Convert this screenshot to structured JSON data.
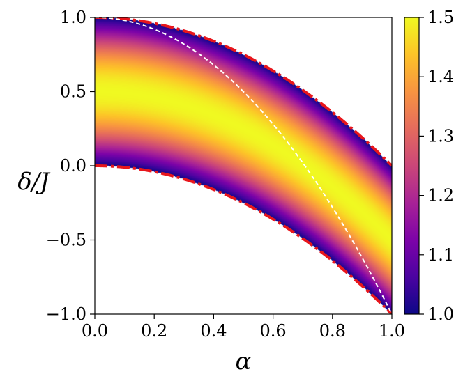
{
  "chart_data": {
    "type": "heatmap",
    "title": "",
    "xlabel": "α",
    "ylabel": "δ/J",
    "xlim": [
      0.0,
      1.0
    ],
    "ylim": [
      -1.0,
      1.0
    ],
    "xticks": [
      "0.0",
      "0.2",
      "0.4",
      "0.6",
      "0.8",
      "1.0"
    ],
    "yticks": [
      "−1.0",
      "−0.5",
      "0.0",
      "0.5",
      "1.0"
    ],
    "xtick_values": [
      0.0,
      0.2,
      0.4,
      0.6,
      0.8,
      1.0
    ],
    "ytick_values": [
      -1.0,
      -0.5,
      0.0,
      0.5,
      1.0
    ],
    "colormap": "plasma",
    "colorbar": {
      "range": [
        1.0,
        1.5
      ],
      "ticks": [
        "1.0",
        "1.1",
        "1.2",
        "1.3",
        "1.4",
        "1.5"
      ],
      "tick_values": [
        1.0,
        1.1,
        1.2,
        1.3,
        1.4,
        1.5
      ]
    },
    "region": {
      "upper_boundary": "δ/J = 1 − α²",
      "lower_boundary": "δ/J = −α²",
      "center_line": "δ/J = 1 − 2α²",
      "value_min_at_boundaries": 1.0,
      "value_max_at_center": 1.5
    },
    "boundary_style": {
      "color": "#e8161c",
      "dash": "dash-dot"
    },
    "center_line_style": {
      "color": "#ffffff",
      "dash": "dashed"
    },
    "grid": false,
    "legend": "none"
  }
}
